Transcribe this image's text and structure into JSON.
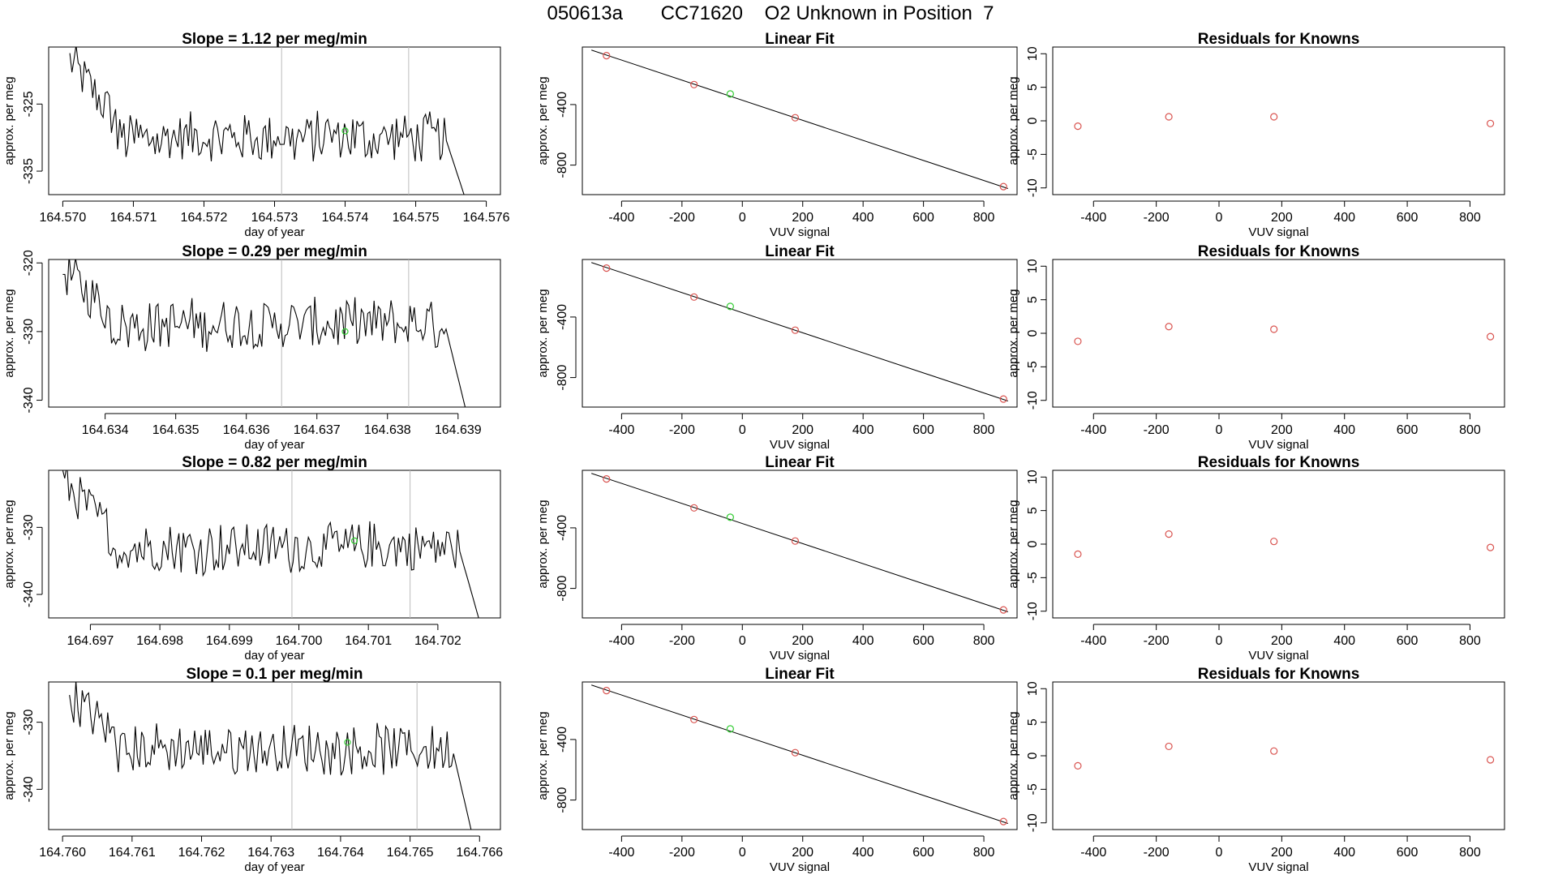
{
  "page_title": "050613a       CC71620    O2 Unknown in Position  7",
  "colors": {
    "trace": "#000000",
    "known_points": "#d9534f",
    "unknown_point": "#33cc33",
    "reference_lines": "#bbbbbb"
  },
  "chart_data": [
    {
      "id": "ts1",
      "type": "line",
      "title": "Slope =  1.12  per meg/min",
      "xlabel": "day of year",
      "ylabel": "approx. per meg",
      "xlim": [
        164.5698,
        164.5762
      ],
      "ylim": [
        -338.5,
        -316.5
      ],
      "xticks": [
        164.57,
        164.571,
        164.572,
        164.573,
        164.574,
        164.575,
        164.576
      ],
      "xtick_labels": [
        "164.570",
        "164.571",
        "164.572",
        "164.573",
        "164.574",
        "164.575",
        "164.576"
      ],
      "yticks": [
        -325,
        -335
      ],
      "ytick_labels": [
        "-325",
        "-335"
      ],
      "series_start": 164.5701,
      "series_end": 164.5757,
      "level_start": -318.5,
      "level_mid": -330,
      "level_end": -339,
      "vlines": [
        164.5731,
        164.5749
      ],
      "highlight": {
        "x": 164.574,
        "y": -329
      }
    },
    {
      "id": "ts2",
      "type": "line",
      "title": "Slope =  0.29  per meg/min",
      "xlabel": "day of year",
      "ylabel": "approx. per meg",
      "xlim": [
        164.6332,
        164.6396
      ],
      "ylim": [
        -341,
        -319.5
      ],
      "xticks": [
        164.634,
        164.635,
        164.636,
        164.637,
        164.638,
        164.639
      ],
      "xtick_labels": [
        "164.634",
        "164.635",
        "164.636",
        "164.637",
        "164.638",
        "164.639"
      ],
      "yticks": [
        -320,
        -330,
        -340
      ],
      "ytick_labels": [
        "-320",
        "-330",
        "-340"
      ],
      "series_start": 164.6334,
      "series_end": 164.6391,
      "level_start": -321,
      "level_mid": -329,
      "level_end": -341,
      "vlines": [
        164.6365,
        164.6383
      ],
      "highlight": {
        "x": 164.6374,
        "y": -330
      }
    },
    {
      "id": "ts3",
      "type": "line",
      "title": "Slope =  0.82  per meg/min",
      "xlabel": "day of year",
      "ylabel": "approx. per meg",
      "xlim": [
        164.6964,
        164.7029
      ],
      "ylim": [
        -343.5,
        -321.5
      ],
      "xticks": [
        164.697,
        164.698,
        164.699,
        164.7,
        164.701,
        164.702
      ],
      "xtick_labels": [
        "164.697",
        "164.698",
        "164.699",
        "164.700",
        "164.701",
        "164.702"
      ],
      "yticks": [
        -330,
        -340
      ],
      "ytick_labels": [
        "-330",
        "-340"
      ],
      "series_start": 164.6966,
      "series_end": 164.7026,
      "level_start": -323,
      "level_mid": -333,
      "level_end": -344,
      "vlines": [
        164.6999,
        164.7016
      ],
      "highlight": {
        "x": 164.7008,
        "y": -332
      }
    },
    {
      "id": "ts4",
      "type": "line",
      "title": "Slope =  0.1  per meg/min",
      "xlabel": "day of year",
      "ylabel": "approx. per meg",
      "xlim": [
        164.7598,
        164.7663
      ],
      "ylim": [
        -346,
        -324
      ],
      "xticks": [
        164.76,
        164.761,
        164.762,
        164.763,
        164.764,
        164.765,
        164.766
      ],
      "xtick_labels": [
        "164.760",
        "164.761",
        "164.762",
        "164.763",
        "164.764",
        "164.765",
        "164.766"
      ],
      "yticks": [
        -330,
        -340
      ],
      "ytick_labels": [
        "-330",
        "-340"
      ],
      "series_start": 164.7601,
      "series_end": 164.7659,
      "level_start": -326,
      "level_mid": -334,
      "level_end": -347,
      "vlines": [
        164.7633,
        164.7651
      ],
      "highlight": {
        "x": 164.7641,
        "y": -333
      }
    },
    {
      "id": "fit1",
      "type": "scatter",
      "title": "Linear Fit",
      "xlabel": "VUV signal",
      "ylabel": "approx. per meg",
      "xlim": [
        -530,
        910
      ],
      "ylim": [
        -995,
        -20
      ],
      "xticks": [
        -400,
        -200,
        0,
        200,
        400,
        600,
        800
      ],
      "xtick_labels": [
        "-400",
        "-200",
        "0",
        "200",
        "400",
        "600",
        "800"
      ],
      "yticks": [
        -400,
        -800
      ],
      "ytick_labels": [
        "-400",
        "-800"
      ],
      "line": [
        [
          -500,
          -40
        ],
        [
          880,
          -955
        ]
      ],
      "knowns": [
        [
          -450,
          -77
        ],
        [
          -160,
          -268
        ],
        [
          175,
          -487
        ],
        [
          865,
          -942
        ]
      ],
      "unknown": [
        [
          -40,
          -330
        ]
      ]
    },
    {
      "id": "fit2",
      "type": "scatter",
      "title": "Linear Fit",
      "xlabel": "VUV signal",
      "ylabel": "approx. per meg",
      "xlim": [
        -530,
        910
      ],
      "ylim": [
        -995,
        -20
      ],
      "xticks": [
        -400,
        -200,
        0,
        200,
        400,
        600,
        800
      ],
      "xtick_labels": [
        "-400",
        "-200",
        "0",
        "200",
        "400",
        "600",
        "800"
      ],
      "yticks": [
        -400,
        -800
      ],
      "ytick_labels": [
        "-400",
        "-800"
      ],
      "line": [
        [
          -500,
          -40
        ],
        [
          880,
          -955
        ]
      ],
      "knowns": [
        [
          -450,
          -77
        ],
        [
          -160,
          -268
        ],
        [
          175,
          -487
        ],
        [
          865,
          -942
        ]
      ],
      "unknown": [
        [
          -40,
          -330
        ]
      ]
    },
    {
      "id": "fit3",
      "type": "scatter",
      "title": "Linear Fit",
      "xlabel": "VUV signal",
      "ylabel": "approx. per meg",
      "xlim": [
        -530,
        910
      ],
      "ylim": [
        -995,
        -20
      ],
      "xticks": [
        -400,
        -200,
        0,
        200,
        400,
        600,
        800
      ],
      "xtick_labels": [
        "-400",
        "-200",
        "0",
        "200",
        "400",
        "600",
        "800"
      ],
      "yticks": [
        -400,
        -800
      ],
      "ytick_labels": [
        "-400",
        "-800"
      ],
      "line": [
        [
          -500,
          -40
        ],
        [
          880,
          -955
        ]
      ],
      "knowns": [
        [
          -450,
          -77
        ],
        [
          -160,
          -268
        ],
        [
          175,
          -487
        ],
        [
          865,
          -942
        ]
      ],
      "unknown": [
        [
          -40,
          -330
        ]
      ]
    },
    {
      "id": "fit4",
      "type": "scatter",
      "title": "Linear Fit",
      "xlabel": "VUV signal",
      "ylabel": "approx. per meg",
      "xlim": [
        -530,
        910
      ],
      "ylim": [
        -995,
        -20
      ],
      "xticks": [
        -400,
        -200,
        0,
        200,
        400,
        600,
        800
      ],
      "xtick_labels": [
        "-400",
        "-200",
        "0",
        "200",
        "400",
        "600",
        "800"
      ],
      "yticks": [
        -400,
        -800
      ],
      "ytick_labels": [
        "-400",
        "-800"
      ],
      "line": [
        [
          -500,
          -40
        ],
        [
          880,
          -955
        ]
      ],
      "knowns": [
        [
          -450,
          -77
        ],
        [
          -160,
          -268
        ],
        [
          175,
          -487
        ],
        [
          865,
          -942
        ]
      ],
      "unknown": [
        [
          -40,
          -330
        ]
      ]
    },
    {
      "id": "res1",
      "type": "scatter",
      "title": "Residuals for Knowns",
      "xlabel": "VUV signal",
      "ylabel": "approx. per meg",
      "xlim": [
        -530,
        910
      ],
      "ylim": [
        -11,
        11
      ],
      "xticks": [
        -400,
        -200,
        0,
        200,
        400,
        600,
        800
      ],
      "xtick_labels": [
        "-400",
        "-200",
        "0",
        "200",
        "400",
        "600",
        "800"
      ],
      "yticks": [
        10,
        5,
        0,
        -5,
        -10
      ],
      "ytick_labels": [
        "10",
        "5",
        "0",
        "-5",
        "-10"
      ],
      "knowns": [
        [
          -450,
          -0.8
        ],
        [
          -160,
          0.6
        ],
        [
          175,
          0.6
        ],
        [
          865,
          -0.4
        ]
      ]
    },
    {
      "id": "res2",
      "type": "scatter",
      "title": "Residuals for Knowns",
      "xlabel": "VUV signal",
      "ylabel": "approx. per meg",
      "xlim": [
        -530,
        910
      ],
      "ylim": [
        -11,
        11
      ],
      "xticks": [
        -400,
        -200,
        0,
        200,
        400,
        600,
        800
      ],
      "xtick_labels": [
        "-400",
        "-200",
        "0",
        "200",
        "400",
        "600",
        "800"
      ],
      "yticks": [
        10,
        5,
        0,
        -5,
        -10
      ],
      "ytick_labels": [
        "10",
        "5",
        "0",
        "-5",
        "-10"
      ],
      "knowns": [
        [
          -450,
          -1.2
        ],
        [
          -160,
          1.0
        ],
        [
          175,
          0.6
        ],
        [
          865,
          -0.5
        ]
      ]
    },
    {
      "id": "res3",
      "type": "scatter",
      "title": "Residuals for Knowns",
      "xlabel": "VUV signal",
      "ylabel": "approx. per meg",
      "xlim": [
        -530,
        910
      ],
      "ylim": [
        -11,
        11
      ],
      "xticks": [
        -400,
        -200,
        0,
        200,
        400,
        600,
        800
      ],
      "xtick_labels": [
        "-400",
        "-200",
        "0",
        "200",
        "400",
        "600",
        "800"
      ],
      "yticks": [
        10,
        5,
        0,
        -5,
        -10
      ],
      "ytick_labels": [
        "10",
        "5",
        "0",
        "-5",
        "-10"
      ],
      "knowns": [
        [
          -450,
          -1.5
        ],
        [
          -160,
          1.5
        ],
        [
          175,
          0.4
        ],
        [
          865,
          -0.5
        ]
      ]
    },
    {
      "id": "res4",
      "type": "scatter",
      "title": "Residuals for Knowns",
      "xlabel": "VUV signal",
      "ylabel": "approx. per meg",
      "xlim": [
        -530,
        910
      ],
      "ylim": [
        -11,
        11
      ],
      "xticks": [
        -400,
        -200,
        0,
        200,
        400,
        600,
        800
      ],
      "xtick_labels": [
        "-400",
        "-200",
        "0",
        "200",
        "400",
        "600",
        "800"
      ],
      "yticks": [
        10,
        5,
        0,
        -5,
        -10
      ],
      "ytick_labels": [
        "10",
        "5",
        "0",
        "-5",
        "-10"
      ],
      "knowns": [
        [
          -450,
          -1.5
        ],
        [
          -160,
          1.4
        ],
        [
          175,
          0.7
        ],
        [
          865,
          -0.6
        ]
      ]
    }
  ]
}
